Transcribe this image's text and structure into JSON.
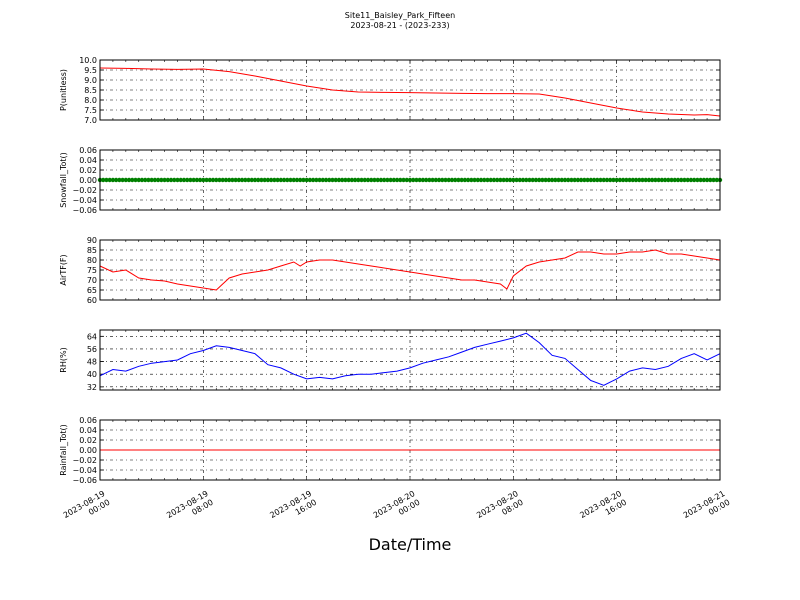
{
  "figure": {
    "title": "Site11_Baisley_Park_Fifteen",
    "subtitle": "2023-08-21 - (2023-233)",
    "xlabel": "Date/Time"
  },
  "chart_data": [
    {
      "type": "line",
      "ylabel": "P(unitless)",
      "ylim": [
        7.0,
        10.0
      ],
      "yticks": [
        "7.0",
        "7.5",
        "8.0",
        "8.5",
        "9.0",
        "9.5",
        "10.0"
      ],
      "xlim": [
        0,
        48
      ],
      "grid": true,
      "color": "#ff0000",
      "series": [
        {
          "x": [
            0,
            2,
            4,
            6,
            8,
            10,
            12,
            14,
            16,
            18,
            20,
            22,
            24,
            26,
            28,
            30,
            32,
            34,
            36,
            38,
            40,
            42,
            44,
            46,
            47,
            48
          ],
          "y": [
            9.6,
            9.58,
            9.55,
            9.53,
            9.55,
            9.42,
            9.2,
            8.95,
            8.7,
            8.5,
            8.4,
            8.38,
            8.37,
            8.35,
            8.33,
            8.32,
            8.32,
            8.3,
            8.1,
            7.85,
            7.6,
            7.4,
            7.3,
            7.25,
            7.27,
            7.2
          ]
        }
      ]
    },
    {
      "type": "scatter",
      "ylabel": "Snowfall_Tot()",
      "ylim": [
        -0.06,
        0.06
      ],
      "yticks": [
        "−0.06",
        "−0.04",
        "−0.02",
        "0.00",
        "0.02",
        "0.04",
        "0.06"
      ],
      "xlim": [
        0,
        48
      ],
      "grid": true,
      "color": "#008000",
      "series": [
        {
          "x_start": 0,
          "x_end": 48,
          "x_step": 0.25,
          "y_constant": 0.0
        }
      ]
    },
    {
      "type": "line",
      "ylabel": "AirTF(F)",
      "ylim": [
        60,
        90
      ],
      "yticks": [
        "60",
        "65",
        "70",
        "75",
        "80",
        "85",
        "90"
      ],
      "xlim": [
        0,
        48
      ],
      "grid": true,
      "color": "#ff0000",
      "series": [
        {
          "x": [
            0,
            1,
            2,
            3,
            4,
            5,
            6,
            7,
            8,
            8.5,
            9,
            10,
            11,
            12,
            13,
            14,
            15,
            15.5,
            16,
            17,
            18,
            19,
            20,
            21,
            22,
            23,
            24,
            25,
            26,
            27,
            28,
            29,
            30,
            31,
            31.5,
            32,
            33,
            34,
            35,
            36,
            37,
            38,
            39,
            40,
            41,
            42,
            43,
            44,
            45,
            46,
            47,
            48
          ],
          "y": [
            77,
            74,
            75,
            71,
            70,
            69.5,
            68,
            67,
            66,
            65.5,
            65,
            71,
            73,
            74,
            75,
            77,
            79,
            77,
            79,
            80,
            80,
            79,
            78,
            77,
            76,
            75,
            74,
            73,
            72,
            71,
            70,
            70,
            69,
            68,
            65.5,
            72,
            77,
            79,
            80,
            81,
            84,
            84,
            83,
            83,
            84,
            84,
            85,
            83,
            83,
            82,
            81,
            80
          ]
        }
      ]
    },
    {
      "type": "line",
      "ylabel": "RH(%)",
      "ylim": [
        30,
        68
      ],
      "yticks": [
        "32",
        "40",
        "48",
        "56",
        "64"
      ],
      "xlim": [
        0,
        48
      ],
      "grid": true,
      "color": "#0000ff",
      "series": [
        {
          "x": [
            0,
            1,
            2,
            3,
            4,
            5,
            6,
            7,
            8,
            9,
            10,
            11,
            12,
            13,
            14,
            15,
            16,
            17,
            18,
            19,
            20,
            21,
            22,
            23,
            24,
            25,
            26,
            27,
            28,
            29,
            30,
            31,
            32,
            33,
            34,
            35,
            36,
            37,
            38,
            39,
            40,
            41,
            42,
            43,
            44,
            45,
            46,
            47,
            48
          ],
          "y": [
            39,
            43,
            42,
            45,
            47,
            48,
            49,
            53,
            55,
            58,
            57,
            55,
            53,
            46,
            44,
            40,
            37,
            38,
            37,
            39,
            40,
            40,
            41,
            42,
            44,
            47,
            49,
            51,
            54,
            57,
            59,
            61,
            63,
            66,
            60,
            52,
            50,
            43,
            36,
            33,
            37,
            42,
            44,
            43,
            45,
            50,
            53,
            49,
            53
          ]
        }
      ]
    },
    {
      "type": "line",
      "ylabel": "Rainfall_Tot()",
      "ylim": [
        -0.06,
        0.06
      ],
      "yticks": [
        "−0.06",
        "−0.04",
        "−0.02",
        "0.00",
        "0.02",
        "0.04",
        "0.06"
      ],
      "xlim": [
        0,
        48
      ],
      "grid": true,
      "color": "#ff0000",
      "xticks": [
        {
          "x": 0,
          "line1": "2023-08-19",
          "line2": "00:00"
        },
        {
          "x": 8,
          "line1": "2023-08-19",
          "line2": "08:00"
        },
        {
          "x": 16,
          "line1": "2023-08-19",
          "line2": "16:00"
        },
        {
          "x": 24,
          "line1": "2023-08-20",
          "line2": "00:00"
        },
        {
          "x": 32,
          "line1": "2023-08-20",
          "line2": "08:00"
        },
        {
          "x": 40,
          "line1": "2023-08-20",
          "line2": "16:00"
        },
        {
          "x": 48,
          "line1": "2023-08-21",
          "line2": "00:00"
        }
      ],
      "series": [
        {
          "x": [
            0,
            48
          ],
          "y": [
            0.0,
            0.0
          ]
        }
      ]
    }
  ]
}
